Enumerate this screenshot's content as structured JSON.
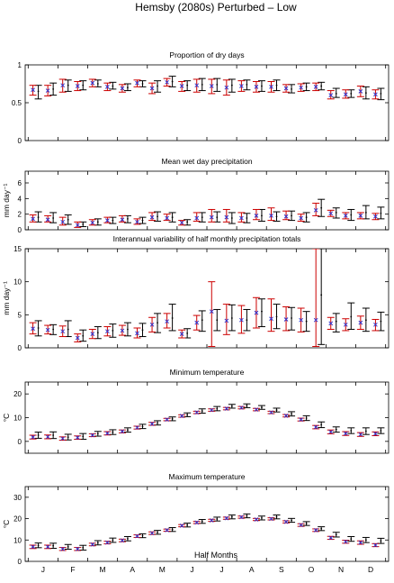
{
  "title": "Hemsby (2080s) Perturbed – Low",
  "xlabel": "Half Months",
  "month_labels": [
    "J",
    "F",
    "M",
    "A",
    "M",
    "J",
    "J",
    "A",
    "S",
    "O",
    "N",
    "D"
  ],
  "colors": {
    "observed": "#000000",
    "model": "#cc0000",
    "mean_marker": "#3333cc"
  },
  "chart_data": [
    {
      "type": "errorbar",
      "title": "Proportion of dry days",
      "ylabel": "",
      "ylim": [
        0,
        1
      ],
      "yticks": [
        0,
        0.5,
        1
      ],
      "yticklabels": [
        "0",
        "0.5",
        "1"
      ],
      "x": [
        1,
        2,
        3,
        4,
        5,
        6,
        7,
        8,
        9,
        10,
        11,
        12,
        13,
        14,
        15,
        16,
        17,
        18,
        19,
        20,
        21,
        22,
        23,
        24
      ],
      "series": [
        {
          "role": "observed",
          "mean": [
            0.65,
            0.68,
            0.73,
            0.73,
            0.75,
            0.72,
            0.7,
            0.75,
            0.72,
            0.78,
            0.73,
            0.74,
            0.74,
            0.73,
            0.74,
            0.72,
            0.73,
            0.68,
            0.71,
            0.72,
            0.62,
            0.62,
            0.63,
            0.62
          ],
          "low": [
            0.55,
            0.6,
            0.65,
            0.67,
            0.71,
            0.68,
            0.66,
            0.71,
            0.64,
            0.71,
            0.66,
            0.66,
            0.65,
            0.64,
            0.67,
            0.65,
            0.66,
            0.63,
            0.66,
            0.67,
            0.57,
            0.57,
            0.55,
            0.54
          ],
          "high": [
            0.73,
            0.76,
            0.8,
            0.79,
            0.8,
            0.77,
            0.75,
            0.79,
            0.79,
            0.85,
            0.79,
            0.82,
            0.82,
            0.81,
            0.8,
            0.79,
            0.8,
            0.74,
            0.76,
            0.77,
            0.69,
            0.67,
            0.71,
            0.69
          ]
        },
        {
          "role": "model",
          "mean": [
            0.67,
            0.66,
            0.73,
            0.72,
            0.76,
            0.71,
            0.69,
            0.76,
            0.69,
            0.77,
            0.72,
            0.73,
            0.72,
            0.7,
            0.72,
            0.71,
            0.71,
            0.69,
            0.7,
            0.71,
            0.6,
            0.61,
            0.65,
            0.61
          ],
          "low": [
            0.6,
            0.59,
            0.64,
            0.66,
            0.71,
            0.66,
            0.64,
            0.71,
            0.62,
            0.72,
            0.65,
            0.64,
            0.62,
            0.6,
            0.65,
            0.64,
            0.64,
            0.64,
            0.65,
            0.66,
            0.55,
            0.56,
            0.58,
            0.55
          ],
          "high": [
            0.73,
            0.73,
            0.81,
            0.78,
            0.81,
            0.76,
            0.74,
            0.8,
            0.76,
            0.82,
            0.78,
            0.81,
            0.81,
            0.8,
            0.79,
            0.78,
            0.78,
            0.74,
            0.75,
            0.76,
            0.66,
            0.67,
            0.72,
            0.67
          ]
        }
      ]
    },
    {
      "type": "errorbar",
      "title": "Mean wet day precipitation",
      "ylabel": "mm day⁻¹",
      "ylim": [
        0,
        7.5
      ],
      "yticks": [
        0,
        2,
        4,
        6
      ],
      "yticklabels": [
        "0",
        "2",
        "4",
        "6"
      ],
      "x": [
        1,
        2,
        3,
        4,
        5,
        6,
        7,
        8,
        9,
        10,
        11,
        12,
        13,
        14,
        15,
        16,
        17,
        18,
        19,
        20,
        21,
        22,
        23,
        24
      ],
      "series": [
        {
          "role": "observed",
          "mean": [
            1.6,
            1.5,
            1.3,
            0.7,
            1.0,
            1.2,
            1.4,
            1.2,
            1.7,
            1.6,
            1.0,
            1.6,
            1.6,
            1.5,
            1.5,
            1.8,
            1.7,
            1.8,
            1.6,
            2.8,
            2.2,
            1.9,
            2.2,
            2.1
          ],
          "low": [
            1.0,
            0.9,
            0.7,
            0.4,
            0.6,
            0.8,
            0.9,
            0.8,
            1.1,
            1.0,
            0.6,
            1.0,
            1.0,
            0.8,
            0.9,
            1.1,
            1.1,
            1.2,
            1.0,
            1.7,
            1.5,
            1.2,
            1.4,
            1.4
          ],
          "high": [
            2.3,
            2.2,
            1.9,
            1.0,
            1.4,
            1.6,
            1.8,
            1.6,
            2.3,
            2.2,
            1.3,
            2.2,
            2.3,
            2.2,
            2.1,
            2.6,
            2.3,
            2.4,
            2.2,
            3.9,
            2.8,
            2.6,
            3.1,
            2.9
          ]
        },
        {
          "role": "model",
          "mean": [
            1.4,
            1.3,
            1.0,
            0.6,
            0.9,
            1.2,
            1.3,
            1.0,
            1.6,
            1.5,
            0.9,
            1.5,
            1.6,
            1.6,
            1.5,
            1.8,
            1.8,
            1.7,
            1.5,
            2.5,
            2.1,
            1.8,
            1.8,
            1.7
          ],
          "low": [
            1.0,
            1.0,
            0.6,
            0.3,
            0.6,
            0.9,
            1.0,
            0.7,
            1.2,
            1.2,
            0.6,
            1.1,
            1.0,
            1.0,
            1.0,
            1.3,
            1.2,
            1.3,
            1.1,
            1.8,
            1.7,
            1.4,
            1.4,
            1.3
          ],
          "high": [
            1.9,
            1.8,
            1.6,
            1.0,
            1.3,
            1.6,
            1.8,
            1.4,
            2.2,
            2.0,
            1.2,
            2.2,
            2.6,
            2.6,
            2.2,
            2.6,
            2.8,
            2.4,
            2.0,
            3.4,
            2.5,
            2.2,
            2.2,
            2.1
          ]
        }
      ]
    },
    {
      "type": "errorbar",
      "title": "Interannual variability of half monthly precipitation totals",
      "ylabel": "mm day⁻¹",
      "ylim": [
        0,
        15
      ],
      "yticks": [
        0,
        5,
        10,
        15
      ],
      "yticklabels": [
        "0",
        "5",
        "10",
        "15"
      ],
      "x": [
        1,
        2,
        3,
        4,
        5,
        6,
        7,
        8,
        9,
        10,
        11,
        12,
        13,
        14,
        15,
        16,
        17,
        18,
        19,
        20,
        21,
        22,
        23,
        24
      ],
      "series": [
        {
          "role": "observed",
          "mean": [
            3.0,
            2.8,
            2.8,
            1.8,
            2.3,
            2.6,
            2.8,
            2.7,
            3.8,
            4.5,
            2.2,
            4.2,
            4.2,
            4.5,
            4.2,
            5.5,
            4.7,
            4.5,
            4.0,
            8.0,
            4.0,
            4.7,
            4.2,
            4.0
          ],
          "low": [
            1.8,
            2.0,
            1.7,
            1.0,
            1.4,
            1.6,
            1.8,
            1.7,
            2.3,
            2.6,
            1.5,
            2.5,
            2.6,
            2.6,
            2.6,
            3.2,
            2.9,
            2.7,
            2.5,
            0.5,
            2.4,
            2.8,
            2.5,
            2.6
          ],
          "high": [
            4.1,
            3.5,
            4.1,
            2.7,
            3.2,
            3.6,
            3.8,
            3.7,
            5.2,
            6.6,
            2.9,
            5.6,
            5.8,
            6.5,
            5.8,
            7.4,
            6.6,
            6.1,
            5.5,
            15.0,
            5.2,
            6.8,
            6.0,
            5.4
          ]
        },
        {
          "role": "model",
          "mean": [
            2.9,
            2.7,
            2.5,
            1.5,
            2.1,
            2.5,
            2.6,
            2.2,
            3.5,
            4.0,
            2.1,
            3.8,
            5.5,
            4.1,
            4.2,
            5.3,
            4.4,
            4.3,
            4.2,
            4.2,
            3.7,
            3.5,
            3.8,
            3.5
          ],
          "low": [
            2.1,
            2.1,
            1.7,
            0.9,
            1.4,
            1.8,
            1.9,
            1.5,
            2.4,
            3.0,
            1.5,
            2.7,
            0.2,
            2.0,
            2.2,
            3.0,
            2.5,
            2.6,
            2.4,
            0.2,
            2.8,
            2.6,
            2.8,
            2.6
          ],
          "high": [
            3.8,
            3.4,
            3.3,
            2.1,
            2.8,
            3.2,
            3.4,
            3.0,
            4.6,
            5.2,
            2.7,
            4.9,
            10.0,
            6.6,
            6.4,
            7.6,
            7.4,
            6.2,
            6.0,
            15.0,
            4.6,
            4.4,
            4.8,
            4.3
          ]
        }
      ]
    },
    {
      "type": "errorbar",
      "title": "Minimum temperature",
      "ylabel": "°C",
      "ylim": [
        -5,
        25
      ],
      "yticks": [
        0,
        10,
        20
      ],
      "yticklabels": [
        "0",
        "10",
        "20"
      ],
      "x": [
        1,
        2,
        3,
        4,
        5,
        6,
        7,
        8,
        9,
        10,
        11,
        12,
        13,
        14,
        15,
        16,
        17,
        18,
        19,
        20,
        21,
        22,
        23,
        24
      ],
      "series": [
        {
          "role": "observed",
          "mean": [
            2.6,
            2.6,
            1.8,
            2.1,
            3.2,
            3.9,
            4.8,
            6.3,
            7.8,
            9.5,
            11.2,
            12.8,
            13.8,
            14.8,
            15.0,
            14.3,
            13.2,
            11.6,
            9.8,
            7.0,
            5.0,
            4.5,
            4.3,
            4.5
          ],
          "low": [
            1.3,
            1.2,
            0.6,
            0.9,
            2.2,
            2.9,
            3.9,
            5.4,
            6.9,
            8.7,
            10.4,
            11.9,
            12.9,
            14.0,
            14.2,
            13.5,
            12.4,
            10.7,
            8.8,
            5.8,
            3.9,
            3.3,
            2.9,
            3.3
          ],
          "high": [
            3.9,
            4.0,
            3.0,
            3.3,
            4.2,
            4.9,
            5.7,
            7.2,
            8.7,
            10.3,
            12.0,
            13.7,
            14.7,
            15.6,
            15.8,
            15.1,
            14.0,
            12.5,
            10.8,
            8.2,
            6.1,
            5.7,
            5.7,
            5.7
          ]
        },
        {
          "role": "model",
          "mean": [
            1.8,
            1.9,
            1.2,
            1.6,
            2.6,
            3.4,
            4.2,
            5.8,
            7.4,
            9.2,
            10.7,
            12.2,
            13.2,
            13.8,
            14.2,
            13.4,
            12.2,
            10.8,
            9.2,
            6.0,
            4.0,
            3.3,
            2.9,
            3.2
          ],
          "low": [
            1.0,
            1.1,
            0.5,
            0.9,
            2.0,
            2.7,
            3.6,
            5.2,
            6.8,
            8.7,
            10.2,
            11.7,
            12.7,
            13.3,
            13.7,
            12.9,
            11.7,
            10.3,
            8.6,
            5.3,
            3.2,
            2.5,
            2.1,
            2.4
          ],
          "high": [
            2.6,
            2.7,
            1.9,
            2.3,
            3.2,
            4.1,
            4.8,
            6.4,
            8.0,
            9.7,
            11.2,
            12.7,
            13.7,
            14.3,
            14.7,
            13.9,
            12.7,
            11.3,
            9.8,
            6.7,
            4.8,
            4.1,
            3.7,
            4.0
          ]
        }
      ]
    },
    {
      "type": "errorbar",
      "title": "Maximum temperature",
      "ylabel": "°C",
      "ylim": [
        0,
        35
      ],
      "yticks": [
        0,
        10,
        20,
        30
      ],
      "yticklabels": [
        "0",
        "10",
        "20",
        "30"
      ],
      "x": [
        1,
        2,
        3,
        4,
        5,
        6,
        7,
        8,
        9,
        10,
        11,
        12,
        13,
        14,
        15,
        16,
        17,
        18,
        19,
        20,
        21,
        22,
        23,
        24
      ],
      "series": [
        {
          "role": "observed",
          "mean": [
            7.5,
            7.3,
            6.8,
            6.4,
            8.7,
            9.9,
            10.6,
            12.0,
            13.6,
            14.9,
            17.0,
            18.7,
            19.8,
            20.8,
            21.3,
            20.3,
            20.8,
            19.2,
            17.7,
            15.3,
            12.5,
            10.5,
            10.0,
            9.6
          ],
          "low": [
            6.4,
            6.1,
            5.7,
            5.3,
            7.7,
            8.9,
            9.6,
            11.1,
            12.7,
            14.0,
            16.1,
            17.8,
            18.9,
            19.9,
            20.4,
            19.4,
            19.9,
            18.3,
            16.8,
            14.4,
            11.4,
            9.4,
            8.8,
            8.4
          ],
          "high": [
            8.6,
            8.5,
            7.9,
            7.5,
            9.7,
            10.9,
            11.6,
            12.9,
            14.5,
            15.8,
            17.9,
            19.6,
            20.7,
            21.7,
            22.2,
            21.2,
            21.7,
            20.1,
            18.6,
            16.2,
            13.6,
            11.6,
            11.2,
            10.8
          ]
        },
        {
          "role": "model",
          "mean": [
            6.8,
            6.8,
            5.8,
            5.8,
            7.9,
            8.8,
            9.8,
            11.8,
            13.2,
            14.6,
            16.7,
            18.2,
            19.2,
            20.2,
            20.7,
            19.6,
            19.9,
            18.5,
            17.0,
            14.6,
            11.0,
            9.2,
            8.8,
            7.6
          ],
          "low": [
            6.0,
            6.0,
            5.1,
            5.1,
            7.3,
            8.2,
            9.2,
            11.2,
            12.6,
            14.1,
            16.2,
            17.7,
            18.7,
            19.7,
            20.2,
            19.1,
            19.4,
            18.0,
            16.4,
            14.0,
            10.3,
            8.5,
            8.0,
            6.9
          ],
          "high": [
            7.6,
            7.6,
            6.5,
            6.5,
            8.5,
            9.4,
            10.4,
            12.4,
            13.8,
            15.1,
            17.2,
            18.7,
            19.7,
            20.7,
            21.2,
            20.1,
            20.4,
            19.0,
            17.6,
            15.2,
            11.7,
            9.9,
            9.6,
            8.3
          ]
        }
      ]
    }
  ]
}
